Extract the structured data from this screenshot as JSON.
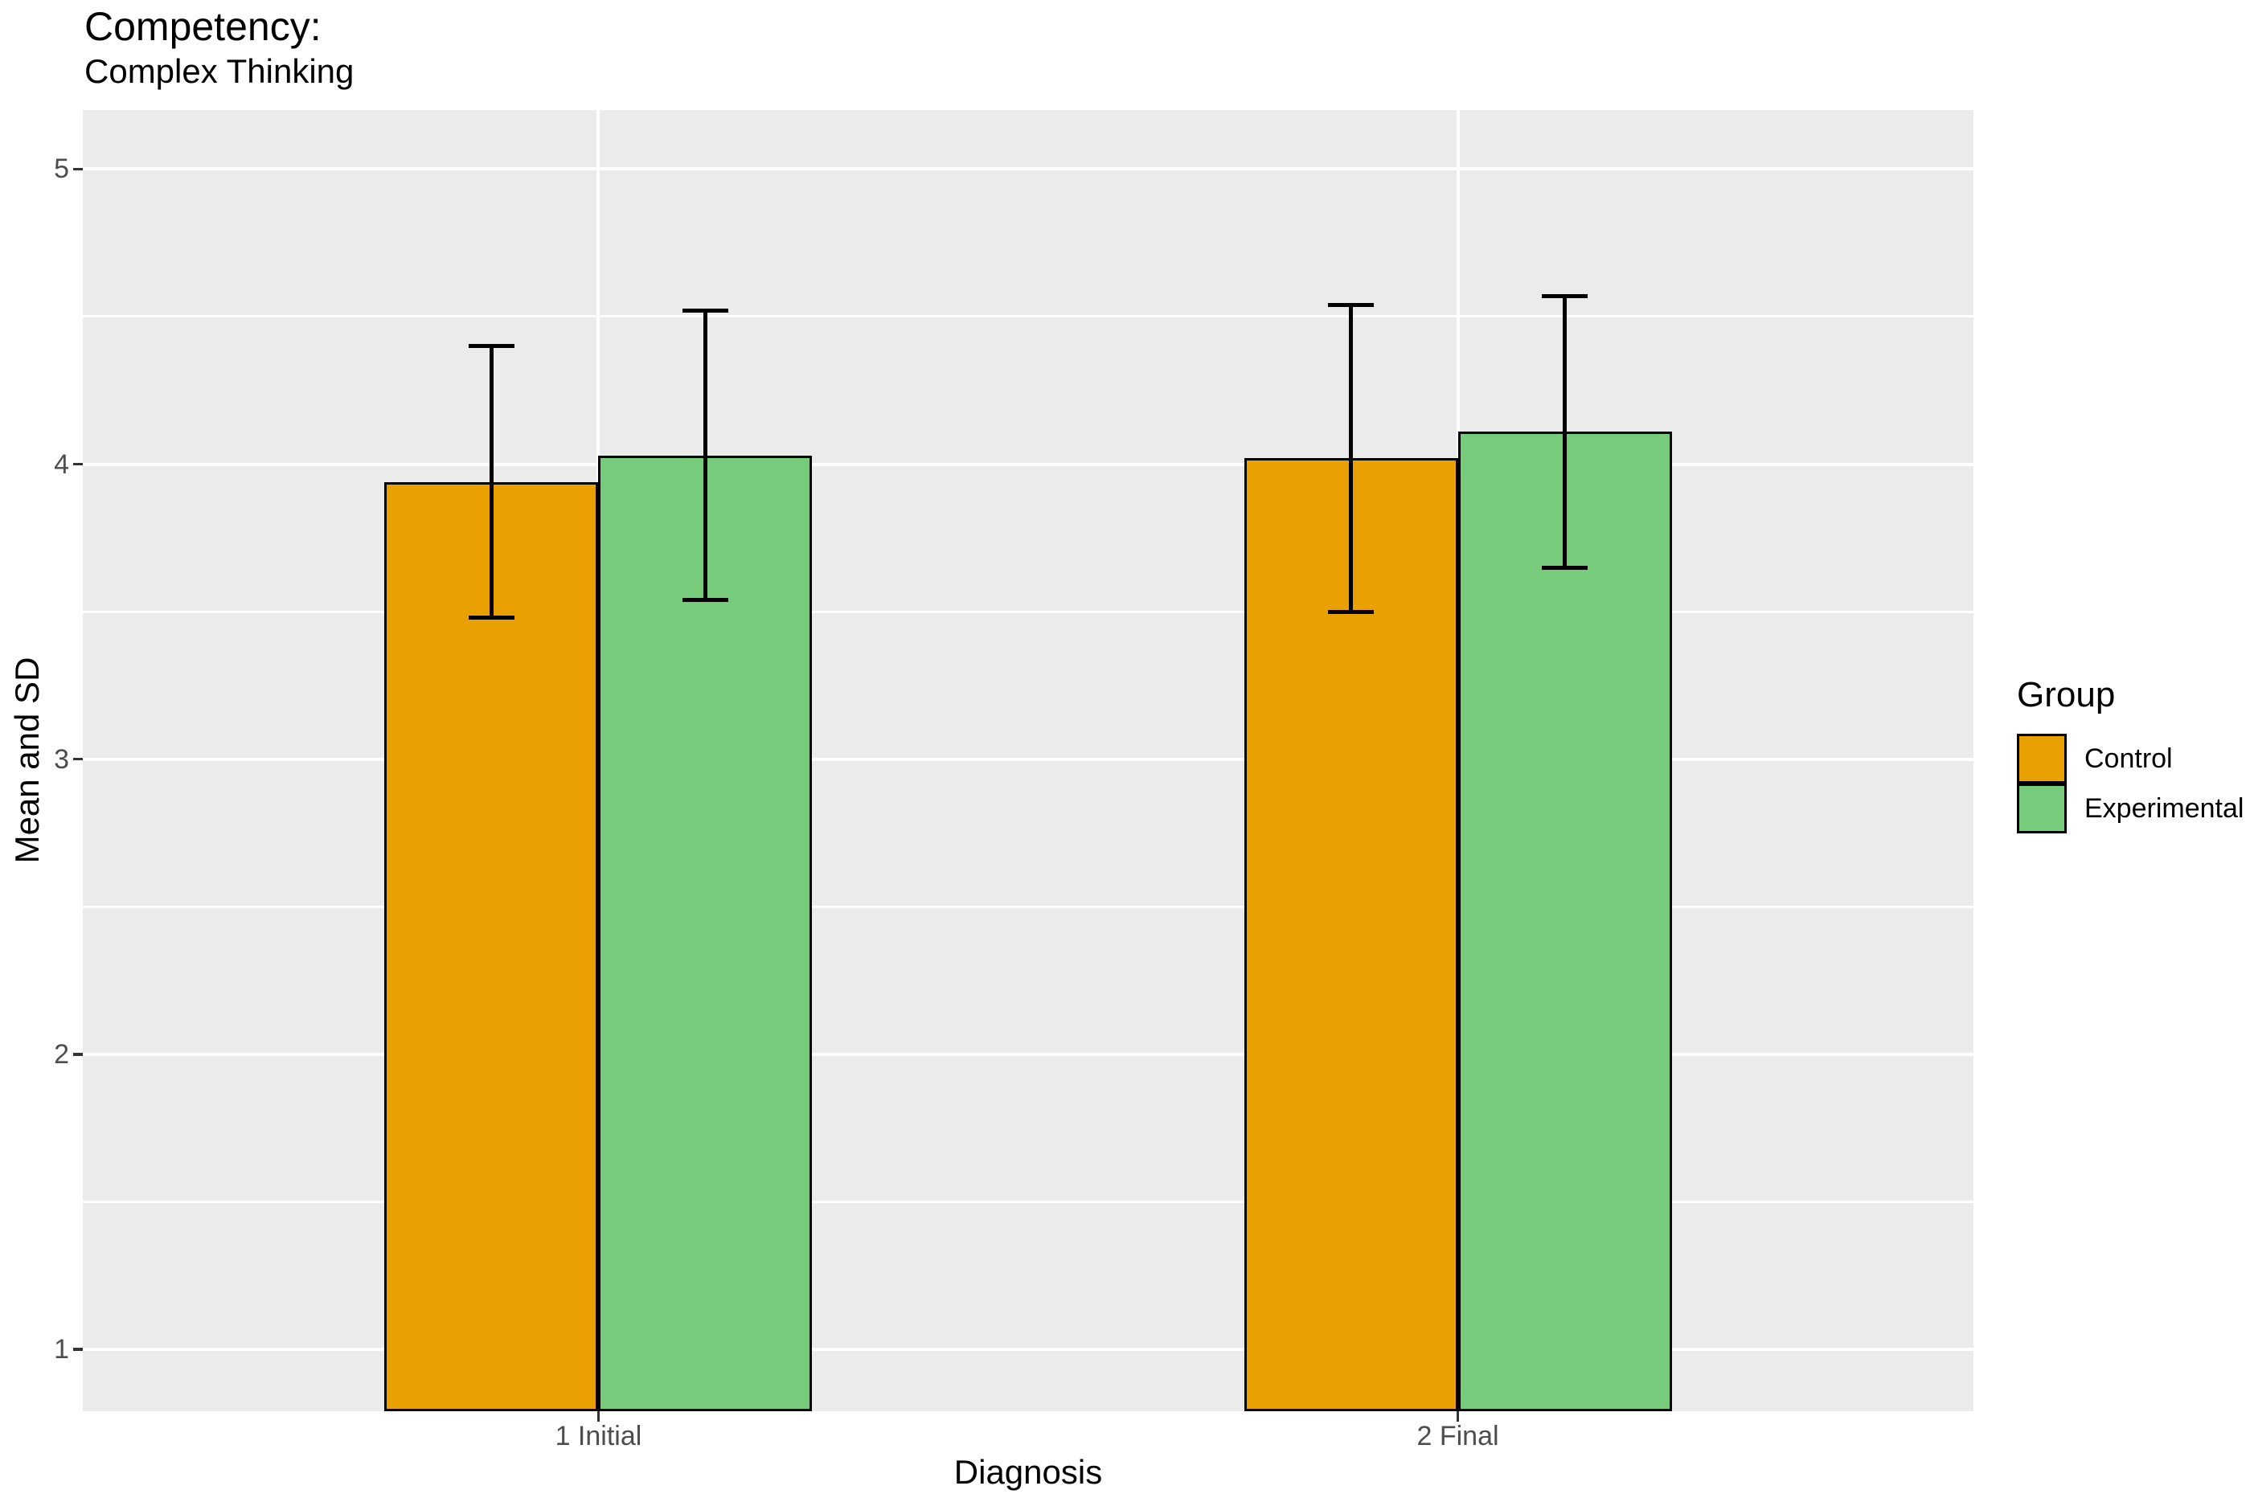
{
  "title": "Competency:",
  "subtitle": "Complex Thinking",
  "axes": {
    "x_title": "Diagnosis",
    "y_title": "Mean and SD"
  },
  "legend": {
    "title": "Group",
    "items": [
      {
        "label": "Control",
        "color": "#E8A100"
      },
      {
        "label": "Experimental",
        "color": "#77CC7C"
      }
    ]
  },
  "chart_data": {
    "type": "bar",
    "title": "Competency: Complex Thinking",
    "categories": [
      "1 Initial",
      "2 Final"
    ],
    "series": [
      {
        "name": "Control",
        "color": "#E8A100",
        "means": [
          3.94,
          4.02
        ],
        "sd": [
          0.46,
          0.52
        ],
        "error_low": [
          3.48,
          3.5
        ],
        "error_high": [
          4.4,
          4.54
        ]
      },
      {
        "name": "Experimental",
        "color": "#77CC7C",
        "means": [
          4.03,
          4.11
        ],
        "sd": [
          0.49,
          0.46
        ],
        "error_low": [
          3.54,
          3.65
        ],
        "error_high": [
          4.52,
          4.57
        ]
      }
    ],
    "xlabel": "Diagnosis",
    "ylabel": "Mean and SD",
    "yticks": [
      1,
      2,
      3,
      4,
      5
    ],
    "minor_gridlines": [
      1.5,
      2.5,
      3.5,
      4.5
    ],
    "ylim": [
      0.79,
      5.2
    ],
    "bars_start_at_panel_bottom": true,
    "grid_color": "#FFFFFF",
    "panel_background": "#EBEBEB",
    "tick_label_color": "#4D4D4D",
    "legend_position": "right"
  }
}
